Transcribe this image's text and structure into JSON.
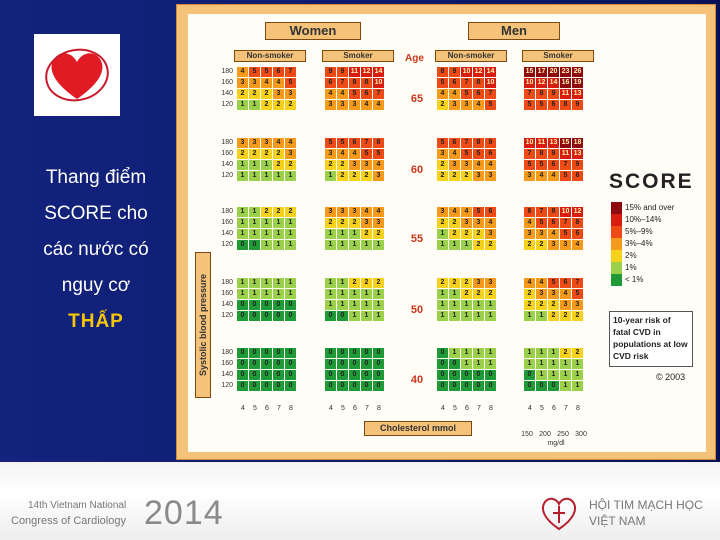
{
  "slide": {
    "side_text": [
      "Thang điểm",
      "SCORE cho",
      "các nước có",
      "nguy cơ"
    ],
    "side_highlight": "THẤP"
  },
  "chart_data": {
    "type": "heatmap",
    "title": "SCORE",
    "sex_labels": [
      "Women",
      "Men"
    ],
    "smoker_labels": [
      "Non-smoker",
      "Smoker"
    ],
    "age_label": "Age",
    "ages": [
      "65",
      "60",
      "55",
      "50",
      "40"
    ],
    "sbp_values": [
      "180",
      "160",
      "140",
      "120"
    ],
    "sbp_label": "Systolic blood pressure",
    "cholesterol_values": [
      "4",
      "5",
      "6",
      "7",
      "8"
    ],
    "cholesterol_label": "Cholesterol mmol",
    "mgdl_values": [
      "150",
      "200",
      "250",
      "300"
    ],
    "mgdl_unit": "mg/dl",
    "legend": [
      {
        "label": "15% and over",
        "color": "#8e0a10"
      },
      {
        "label": "10%–14%",
        "color": "#d81c10"
      },
      {
        "label": "5%–9%",
        "color": "#ee4a16"
      },
      {
        "label": "3%–4%",
        "color": "#f59a1b"
      },
      {
        "label": "2%",
        "color": "#f6d21c"
      },
      {
        "label": "1%",
        "color": "#9ad04a"
      },
      {
        "label": "< 1%",
        "color": "#1f9a36"
      }
    ],
    "caption": "10-year risk of fatal CVD in populations at low CVD risk",
    "copyright": "© 2003",
    "grids": [
      [
        {
          "wn": [
            [
              4,
              5,
              5,
              6,
              7
            ],
            [
              3,
              3,
              4,
              4,
              5
            ],
            [
              2,
              2,
              2,
              3,
              3
            ],
            [
              1,
              1,
              2,
              2,
              2
            ]
          ],
          "ws": [
            [
              9,
              9,
              11,
              12,
              14
            ],
            [
              6,
              7,
              8,
              8,
              10
            ],
            [
              4,
              4,
              5,
              6,
              7
            ],
            [
              3,
              3,
              3,
              4,
              4
            ]
          ],
          "mn": [
            [
              8,
              9,
              10,
              12,
              14
            ],
            [
              5,
              6,
              7,
              8,
              10
            ],
            [
              4,
              4,
              5,
              6,
              7
            ],
            [
              2,
              3,
              3,
              4,
              5
            ]
          ],
          "ms": [
            [
              15,
              17,
              20,
              23,
              26
            ],
            [
              10,
              12,
              14,
              16,
              19
            ],
            [
              7,
              8,
              9,
              11,
              13
            ],
            [
              5,
              5,
              6,
              8,
              9
            ]
          ]
        },
        {
          "wn": [
            [
              3,
              3,
              3,
              4,
              4
            ],
            [
              2,
              2,
              2,
              2,
              3
            ],
            [
              1,
              1,
              1,
              2,
              2
            ],
            [
              1,
              1,
              1,
              1,
              1
            ]
          ],
          "ws": [
            [
              5,
              5,
              6,
              7,
              8
            ],
            [
              3,
              4,
              4,
              5,
              5
            ],
            [
              2,
              2,
              3,
              3,
              4
            ],
            [
              1,
              2,
              2,
              2,
              3
            ]
          ],
          "mn": [
            [
              5,
              6,
              7,
              8,
              9
            ],
            [
              3,
              4,
              5,
              5,
              6
            ],
            [
              2,
              3,
              3,
              4,
              4
            ],
            [
              2,
              2,
              2,
              3,
              3
            ]
          ],
          "ms": [
            [
              10,
              11,
              13,
              15,
              18
            ],
            [
              7,
              8,
              9,
              11,
              13
            ],
            [
              5,
              5,
              6,
              7,
              9
            ],
            [
              3,
              4,
              4,
              5,
              6
            ]
          ]
        },
        {
          "wn": [
            [
              1,
              1,
              2,
              2,
              2
            ],
            [
              1,
              1,
              1,
              1,
              1
            ],
            [
              1,
              1,
              1,
              1,
              1
            ],
            [
              0,
              0,
              1,
              1,
              1
            ]
          ],
          "ws": [
            [
              3,
              3,
              3,
              4,
              4
            ],
            [
              2,
              2,
              2,
              3,
              3
            ],
            [
              1,
              1,
              1,
              2,
              2
            ],
            [
              1,
              1,
              1,
              1,
              1
            ]
          ],
          "mn": [
            [
              3,
              4,
              4,
              5,
              6
            ],
            [
              2,
              2,
              3,
              3,
              4
            ],
            [
              1,
              2,
              2,
              2,
              3
            ],
            [
              1,
              1,
              1,
              2,
              2
            ]
          ],
          "ms": [
            [
              6,
              7,
              8,
              10,
              12
            ],
            [
              4,
              5,
              6,
              7,
              8
            ],
            [
              3,
              3,
              4,
              5,
              6
            ],
            [
              2,
              2,
              3,
              3,
              4
            ]
          ]
        },
        {
          "wn": [
            [
              1,
              1,
              1,
              1,
              1
            ],
            [
              1,
              1,
              1,
              1,
              1
            ],
            [
              0,
              0,
              0,
              0,
              0
            ],
            [
              0,
              0,
              0,
              0,
              0
            ]
          ],
          "ws": [
            [
              1,
              1,
              2,
              2,
              2
            ],
            [
              1,
              1,
              1,
              1,
              1
            ],
            [
              1,
              1,
              1,
              1,
              1
            ],
            [
              0,
              0,
              1,
              1,
              1
            ]
          ],
          "mn": [
            [
              2,
              2,
              2,
              3,
              3
            ],
            [
              1,
              1,
              2,
              2,
              2
            ],
            [
              1,
              1,
              1,
              1,
              1
            ],
            [
              1,
              1,
              1,
              1,
              1
            ]
          ],
          "ms": [
            [
              4,
              4,
              5,
              6,
              7
            ],
            [
              2,
              3,
              3,
              4,
              5
            ],
            [
              2,
              2,
              2,
              3,
              3
            ],
            [
              1,
              1,
              2,
              2,
              2
            ]
          ]
        },
        {
          "wn": [
            [
              0,
              0,
              0,
              0,
              0
            ],
            [
              0,
              0,
              0,
              0,
              0
            ],
            [
              0,
              0,
              0,
              0,
              0
            ],
            [
              0,
              0,
              0,
              0,
              0
            ]
          ],
          "ws": [
            [
              0,
              0,
              0,
              0,
              0
            ],
            [
              0,
              0,
              0,
              0,
              0
            ],
            [
              0,
              0,
              0,
              0,
              0
            ],
            [
              0,
              0,
              0,
              0,
              0
            ]
          ],
          "mn": [
            [
              0,
              1,
              1,
              1,
              1
            ],
            [
              0,
              0,
              1,
              1,
              1
            ],
            [
              0,
              0,
              0,
              0,
              0
            ],
            [
              0,
              0,
              0,
              0,
              0
            ]
          ],
          "ms": [
            [
              1,
              1,
              1,
              2,
              2
            ],
            [
              1,
              1,
              1,
              1,
              1
            ],
            [
              0,
              1,
              1,
              1,
              1
            ],
            [
              0,
              0,
              0,
              1,
              1
            ]
          ]
        }
      ]
    ]
  },
  "footer": {
    "congress_line1": "14th Vietnam National",
    "congress_line2": "Congress of Cardiology",
    "year": "2014",
    "org_line1": "HỘI TIM MẠCH HỌC",
    "org_line2": "VIỆT NAM"
  }
}
